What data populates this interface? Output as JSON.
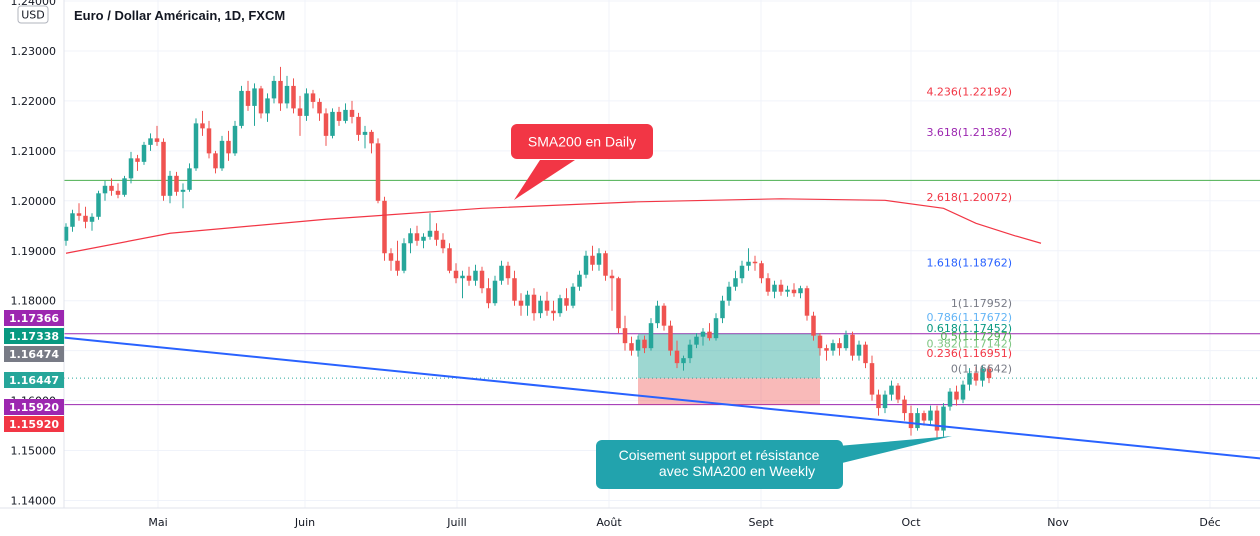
{
  "title": "Euro / Dollar Américain, 1D, FXCM",
  "currency": "USD",
  "chart_data": {
    "type": "candlestick",
    "y_ticks": [
      "1.24000",
      "1.23000",
      "1.22000",
      "1.21000",
      "1.20000",
      "1.19000",
      "1.18000",
      "1.17000",
      "1.16000",
      "1.15000",
      "1.14000"
    ],
    "x_ticks": [
      "Mai",
      "Juin",
      "Juill",
      "Août",
      "Sept",
      "Oct",
      "Nov",
      "Déc"
    ],
    "ylim": [
      1.1385,
      1.2402
    ],
    "candles": [
      [
        1.192,
        1.1955,
        1.191,
        1.1948
      ],
      [
        1.1948,
        1.1982,
        1.1938,
        1.1975
      ],
      [
        1.1975,
        1.1995,
        1.196,
        1.197
      ],
      [
        1.197,
        1.1988,
        1.1945,
        1.1958
      ],
      [
        1.1958,
        1.1975,
        1.194,
        1.1968
      ],
      [
        1.1968,
        1.202,
        1.1962,
        1.2015
      ],
      [
        1.2015,
        1.204,
        1.2,
        1.203
      ],
      [
        1.203,
        1.2045,
        1.201,
        1.202
      ],
      [
        1.202,
        1.2035,
        1.2005,
        1.2012
      ],
      [
        1.2012,
        1.205,
        1.2008,
        1.2045
      ],
      [
        1.2045,
        1.2098,
        1.2035,
        1.2085
      ],
      [
        1.2085,
        1.2092,
        1.206,
        1.2078
      ],
      [
        1.2078,
        1.2118,
        1.2072,
        1.2112
      ],
      [
        1.2112,
        1.2135,
        1.21,
        1.2125
      ],
      [
        1.2125,
        1.215,
        1.211,
        1.2118
      ],
      [
        1.2118,
        1.2125,
        1.2,
        1.201
      ],
      [
        1.201,
        1.206,
        1.1995,
        1.205
      ],
      [
        1.205,
        1.2058,
        1.201,
        1.2018
      ],
      [
        1.2018,
        1.2035,
        1.1985,
        1.2022
      ],
      [
        1.2022,
        1.2075,
        1.2018,
        1.2065
      ],
      [
        1.2065,
        1.2165,
        1.206,
        1.2155
      ],
      [
        1.2155,
        1.218,
        1.213,
        1.2145
      ],
      [
        1.2145,
        1.216,
        1.2085,
        1.2095
      ],
      [
        1.2095,
        1.21,
        1.2055,
        1.2065
      ],
      [
        1.2065,
        1.213,
        1.206,
        1.212
      ],
      [
        1.212,
        1.214,
        1.208,
        1.2095
      ],
      [
        1.2095,
        1.216,
        1.209,
        1.215
      ],
      [
        1.215,
        1.223,
        1.2145,
        1.222
      ],
      [
        1.222,
        1.224,
        1.218,
        1.219
      ],
      [
        1.219,
        1.2235,
        1.215,
        1.2225
      ],
      [
        1.2225,
        1.223,
        1.2165,
        1.2175
      ],
      [
        1.2175,
        1.2215,
        1.2158,
        1.2205
      ],
      [
        1.2205,
        1.225,
        1.2195,
        1.224
      ],
      [
        1.224,
        1.2268,
        1.218,
        1.2195
      ],
      [
        1.2195,
        1.225,
        1.2185,
        1.223
      ],
      [
        1.223,
        1.2245,
        1.2175,
        1.2185
      ],
      [
        1.2185,
        1.221,
        1.213,
        1.217
      ],
      [
        1.217,
        1.2225,
        1.216,
        1.2215
      ],
      [
        1.2215,
        1.2222,
        1.2185,
        1.2198
      ],
      [
        1.2198,
        1.2205,
        1.216,
        1.2175
      ],
      [
        1.2175,
        1.2185,
        1.211,
        1.213
      ],
      [
        1.213,
        1.2185,
        1.2125,
        1.2178
      ],
      [
        1.2178,
        1.2188,
        1.215,
        1.216
      ],
      [
        1.216,
        1.2195,
        1.2155,
        1.2182
      ],
      [
        1.2182,
        1.22,
        1.2155,
        1.2168
      ],
      [
        1.2168,
        1.2176,
        1.212,
        1.2132
      ],
      [
        1.2132,
        1.215,
        1.2105,
        1.2138
      ],
      [
        1.2138,
        1.2142,
        1.2095,
        1.2115
      ],
      [
        1.2115,
        1.2125,
        1.1995,
        1.2
      ],
      [
        1.2,
        1.2008,
        1.188,
        1.1895
      ],
      [
        1.1895,
        1.1905,
        1.186,
        1.188
      ],
      [
        1.188,
        1.192,
        1.185,
        1.186
      ],
      [
        1.186,
        1.1925,
        1.1855,
        1.1915
      ],
      [
        1.1915,
        1.1945,
        1.1895,
        1.1935
      ],
      [
        1.1935,
        1.195,
        1.191,
        1.192
      ],
      [
        1.192,
        1.1935,
        1.1905,
        1.1928
      ],
      [
        1.1928,
        1.1975,
        1.1922,
        1.194
      ],
      [
        1.194,
        1.1955,
        1.191,
        1.1922
      ],
      [
        1.1922,
        1.1935,
        1.1895,
        1.1905
      ],
      [
        1.1905,
        1.1915,
        1.1855,
        1.186
      ],
      [
        1.186,
        1.1875,
        1.1835,
        1.1845
      ],
      [
        1.1845,
        1.186,
        1.1805,
        1.185
      ],
      [
        1.185,
        1.1868,
        1.183,
        1.184
      ],
      [
        1.184,
        1.1872,
        1.183,
        1.186
      ],
      [
        1.186,
        1.1868,
        1.1815,
        1.1825
      ],
      [
        1.1825,
        1.1845,
        1.1785,
        1.1795
      ],
      [
        1.1795,
        1.185,
        1.179,
        1.184
      ],
      [
        1.184,
        1.188,
        1.1832,
        1.187
      ],
      [
        1.187,
        1.1878,
        1.1832,
        1.1845
      ],
      [
        1.1845,
        1.186,
        1.179,
        1.18
      ],
      [
        1.18,
        1.1815,
        1.177,
        1.179
      ],
      [
        1.179,
        1.182,
        1.177,
        1.1812
      ],
      [
        1.1812,
        1.1825,
        1.176,
        1.1775
      ],
      [
        1.1775,
        1.181,
        1.1765,
        1.18
      ],
      [
        1.18,
        1.1818,
        1.177,
        1.178
      ],
      [
        1.178,
        1.18,
        1.176,
        1.1775
      ],
      [
        1.1775,
        1.1812,
        1.1768,
        1.1805
      ],
      [
        1.1805,
        1.1825,
        1.178,
        1.179
      ],
      [
        1.179,
        1.1835,
        1.1785,
        1.1828
      ],
      [
        1.1828,
        1.186,
        1.182,
        1.1852
      ],
      [
        1.1852,
        1.19,
        1.1845,
        1.189
      ],
      [
        1.189,
        1.191,
        1.186,
        1.1872
      ],
      [
        1.1872,
        1.1905,
        1.186,
        1.1895
      ],
      [
        1.1895,
        1.19,
        1.184,
        1.185
      ],
      [
        1.185,
        1.1862,
        1.178,
        1.1845
      ],
      [
        1.1845,
        1.1848,
        1.1735,
        1.1745
      ],
      [
        1.1745,
        1.177,
        1.17,
        1.1715
      ],
      [
        1.1715,
        1.1728,
        1.169,
        1.17
      ],
      [
        1.17,
        1.173,
        1.1688,
        1.1722
      ],
      [
        1.1722,
        1.173,
        1.1695,
        1.1705
      ],
      [
        1.1705,
        1.1765,
        1.17,
        1.1755
      ],
      [
        1.1755,
        1.18,
        1.1745,
        1.179
      ],
      [
        1.179,
        1.1795,
        1.174,
        1.175
      ],
      [
        1.175,
        1.176,
        1.169,
        1.17
      ],
      [
        1.17,
        1.172,
        1.1665,
        1.1675
      ],
      [
        1.1675,
        1.169,
        1.166,
        1.1685
      ],
      [
        1.1685,
        1.1722,
        1.1675,
        1.1712
      ],
      [
        1.1712,
        1.1735,
        1.1705,
        1.1728
      ],
      [
        1.1728,
        1.1745,
        1.171,
        1.1738
      ],
      [
        1.1738,
        1.1755,
        1.172,
        1.1725
      ],
      [
        1.1725,
        1.1775,
        1.172,
        1.1765
      ],
      [
        1.1765,
        1.181,
        1.1755,
        1.18
      ],
      [
        1.18,
        1.1838,
        1.179,
        1.1828
      ],
      [
        1.1828,
        1.186,
        1.182,
        1.1845
      ],
      [
        1.1845,
        1.188,
        1.1835,
        1.187
      ],
      [
        1.187,
        1.1905,
        1.186,
        1.1878
      ],
      [
        1.1878,
        1.189,
        1.186,
        1.1875
      ],
      [
        1.1875,
        1.188,
        1.1835,
        1.1845
      ],
      [
        1.1845,
        1.1855,
        1.181,
        1.1818
      ],
      [
        1.1818,
        1.184,
        1.1805,
        1.1832
      ],
      [
        1.1832,
        1.1842,
        1.181,
        1.1818
      ],
      [
        1.1818,
        1.183,
        1.1808,
        1.1822
      ],
      [
        1.1822,
        1.1835,
        1.1808,
        1.1815
      ],
      [
        1.1815,
        1.183,
        1.1805,
        1.1825
      ],
      [
        1.1825,
        1.183,
        1.176,
        1.177
      ],
      [
        1.177,
        1.1778,
        1.172,
        1.173
      ],
      [
        1.173,
        1.1735,
        1.169,
        1.1705
      ],
      [
        1.1705,
        1.1712,
        1.168,
        1.17
      ],
      [
        1.17,
        1.1722,
        1.169,
        1.1715
      ],
      [
        1.1715,
        1.1725,
        1.169,
        1.1705
      ],
      [
        1.1705,
        1.174,
        1.17,
        1.1732
      ],
      [
        1.1732,
        1.1738,
        1.168,
        1.169
      ],
      [
        1.169,
        1.172,
        1.168,
        1.1712
      ],
      [
        1.1712,
        1.1718,
        1.1665,
        1.1675
      ],
      [
        1.1675,
        1.169,
        1.16,
        1.1612
      ],
      [
        1.1612,
        1.1622,
        1.157,
        1.1585
      ],
      [
        1.1585,
        1.162,
        1.1575,
        1.1612
      ],
      [
        1.1612,
        1.164,
        1.16,
        1.163
      ],
      [
        1.163,
        1.1635,
        1.1595,
        1.1602
      ],
      [
        1.1602,
        1.161,
        1.156,
        1.1575
      ],
      [
        1.1575,
        1.159,
        1.153,
        1.1545
      ],
      [
        1.1545,
        1.1585,
        1.154,
        1.1575
      ],
      [
        1.1575,
        1.158,
        1.155,
        1.156
      ],
      [
        1.156,
        1.159,
        1.1552,
        1.158
      ],
      [
        1.158,
        1.159,
        1.1525,
        1.154
      ],
      [
        1.154,
        1.1595,
        1.1528,
        1.1588
      ],
      [
        1.1588,
        1.1625,
        1.158,
        1.1618
      ],
      [
        1.1618,
        1.163,
        1.159,
        1.1602
      ],
      [
        1.1602,
        1.164,
        1.1595,
        1.1632
      ],
      [
        1.1632,
        1.1665,
        1.162,
        1.1655
      ],
      [
        1.1655,
        1.1668,
        1.163,
        1.164
      ],
      [
        1.164,
        1.167,
        1.1628,
        1.1664
      ],
      [
        1.1664,
        1.1672,
        1.1635,
        1.1645
      ]
    ],
    "sma200": [
      [
        1.1895,
        0
      ],
      [
        1.1935,
        16
      ],
      [
        1.1963,
        40
      ],
      [
        1.1985,
        64
      ],
      [
        1.1998,
        88
      ],
      [
        1.2004,
        110
      ],
      [
        1.2001,
        126
      ],
      [
        1.1985,
        135
      ],
      [
        1.1955,
        140
      ],
      [
        1.193,
        146
      ],
      [
        1.1915,
        150
      ]
    ],
    "fib_levels": [
      {
        "label": "4.236(1.22192)",
        "value": 1.22192,
        "color": "#f23645"
      },
      {
        "label": "3.618(1.21382)",
        "value": 1.21382,
        "color": "#9c27b0"
      },
      {
        "label": "2.618(1.20072)",
        "value": 1.20072,
        "color": "#f23645"
      },
      {
        "label": "1.618(1.18762)",
        "value": 1.18762,
        "color": "#2962ff"
      },
      {
        "label": "1(1.17952)",
        "value": 1.17952,
        "color": "#787b86"
      },
      {
        "label": "0.786(1.17672)",
        "value": 1.17672,
        "color": "#64b5f6"
      },
      {
        "label": "0.618(1.17452)",
        "value": 1.17452,
        "color": "#089981"
      },
      {
        "label": "0.5(1.17297)",
        "value": 1.17297,
        "color": "#4caf50"
      },
      {
        "label": "0.382(1.17142)",
        "value": 1.17142,
        "color": "#81c784"
      },
      {
        "label": "0.236(1.16951)",
        "value": 1.16951,
        "color": "#f23645"
      },
      {
        "label": "0(1.16642)",
        "value": 1.16642,
        "color": "#787b86"
      }
    ],
    "horizontal_lines": [
      {
        "value": 1.2041,
        "color": "#4caf50"
      },
      {
        "value": 1.17338,
        "color": "#9c27b0"
      },
      {
        "value": 1.1592,
        "color": "#9c27b0"
      }
    ],
    "trendline": {
      "start": [
        1.1727,
        -1
      ],
      "end": [
        1.1484,
        184
      ],
      "color": "#2962ff"
    },
    "position_box": {
      "from": 88,
      "to": 116,
      "entry": 1.16447,
      "target": 1.17338,
      "stop": 1.1592
    },
    "price_tags": [
      {
        "label": "1.17366",
        "value": 1.17366,
        "color": "#9c27b0"
      },
      {
        "label": "1.17338",
        "value": 1.17338,
        "color": "#089981"
      },
      {
        "label": "1.16474",
        "value": 1.16474,
        "color": "#787b86"
      },
      {
        "label": "1.16447",
        "value": 1.16447,
        "color": "#26a69a"
      },
      {
        "label": "1.15920",
        "value": 1.1592,
        "color": "#9c27b0"
      },
      {
        "label": "1.15920",
        "value": 1.1592,
        "color": "#f23645"
      }
    ],
    "annotations": [
      {
        "text": "SMA200 en Daily",
        "color": "#f23645"
      },
      {
        "text_lines": [
          "Coisement support et résistance",
          "avec SMA200 en Weekly"
        ],
        "color": "#22a3ad"
      }
    ],
    "colors": {
      "up": "#26a69a",
      "down": "#ef5350",
      "sma": "#f23645"
    }
  }
}
